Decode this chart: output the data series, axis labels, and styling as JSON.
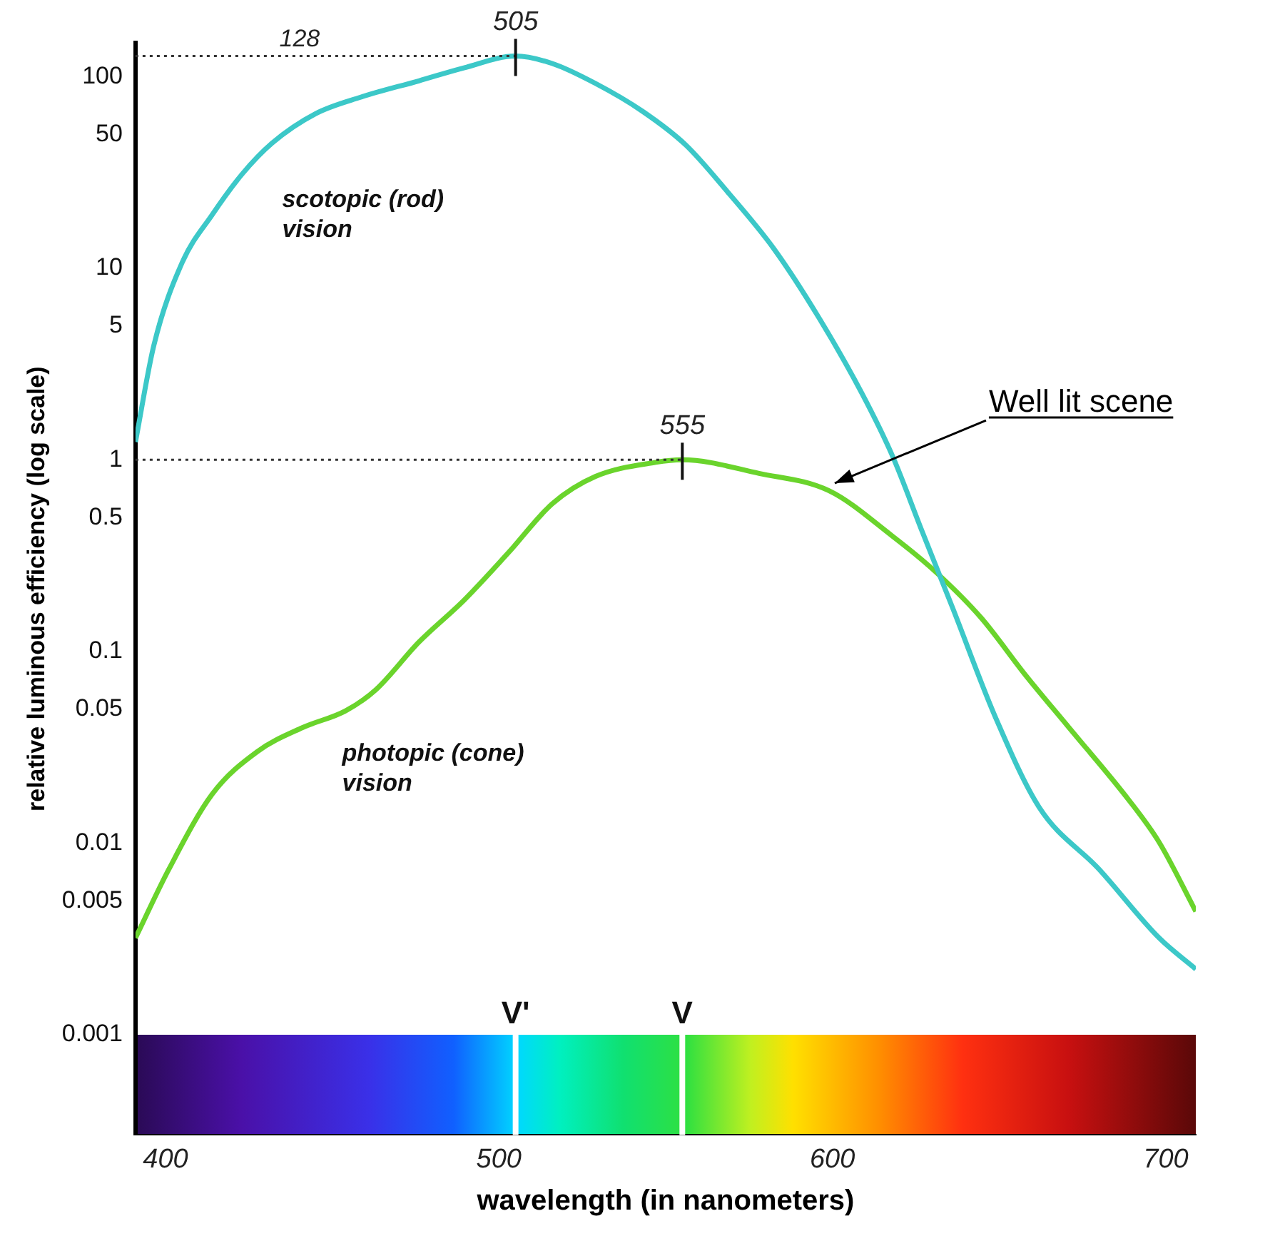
{
  "chart_data": {
    "type": "line",
    "xlabel": "wavelength (in nanometers)",
    "ylabel": "relative luminous efficiency (log scale)",
    "x": [
      391,
      396.5,
      405,
      414,
      423,
      432,
      445,
      458.5,
      476,
      489.5,
      505,
      516,
      529,
      543,
      556,
      569,
      582.5,
      596,
      609,
      618,
      627,
      636,
      649,
      662,
      680,
      698,
      709
    ],
    "series": [
      {
        "name": "scotopic (rod) vision",
        "color": "#3cc8c8",
        "values": [
          1.24,
          3.95,
          10.7,
          19,
          31,
          45,
          64,
          78,
          95,
          111,
          128,
          117,
          92,
          66,
          44,
          24.5,
          12.6,
          5.5,
          2.2,
          1.05,
          0.42,
          0.17,
          0.045,
          0.0154,
          0.0073,
          0.0032,
          0.0022
        ]
      },
      {
        "name": "photopic (cone) vision",
        "color": "#6ad42c",
        "x": [
          391,
          401,
          414,
          427.5,
          441,
          454,
          463,
          476,
          489.5,
          503,
          516,
          529,
          547,
          555,
          578,
          599,
          618,
          631,
          644.6,
          658,
          671,
          689,
          698,
          709
        ],
        "values": [
          0.0032,
          0.0073,
          0.018,
          0.03,
          0.04,
          0.049,
          0.063,
          0.112,
          0.185,
          0.33,
          0.59,
          0.82,
          0.97,
          1,
          0.85,
          0.69,
          0.4,
          0.26,
          0.15,
          0.075,
          0.04,
          0.0167,
          0.0101,
          0.0044
        ]
      }
    ],
    "xlim": [
      391,
      709
    ],
    "xticks": [
      400,
      500,
      600,
      700
    ],
    "ylim": [
      0.0003,
      150
    ],
    "yticks": [
      100,
      50,
      10,
      5,
      1,
      0.5,
      0.1,
      0.05,
      0.01,
      0.005,
      0.001
    ],
    "log": "y",
    "grid": false,
    "legend": false,
    "marker": "none",
    "line_style": "solid",
    "ref_lines": [
      {
        "axis": "y",
        "value": 128,
        "label": "128",
        "line_style": "dotted"
      },
      {
        "axis": "y",
        "value": 1,
        "line_style": "dotted"
      },
      {
        "axis": "x",
        "value": 505,
        "label": "V'",
        "color": "#ffffff"
      },
      {
        "axis": "x",
        "value": 555,
        "label": "V",
        "color": "#ffffff"
      }
    ],
    "annotations": [
      {
        "text": "505",
        "x": 505,
        "y": 128
      },
      {
        "text": "555",
        "x": 555,
        "y": 1
      },
      {
        "text": "Well lit scene",
        "x": 599,
        "y": 0.73
      }
    ]
  }
}
